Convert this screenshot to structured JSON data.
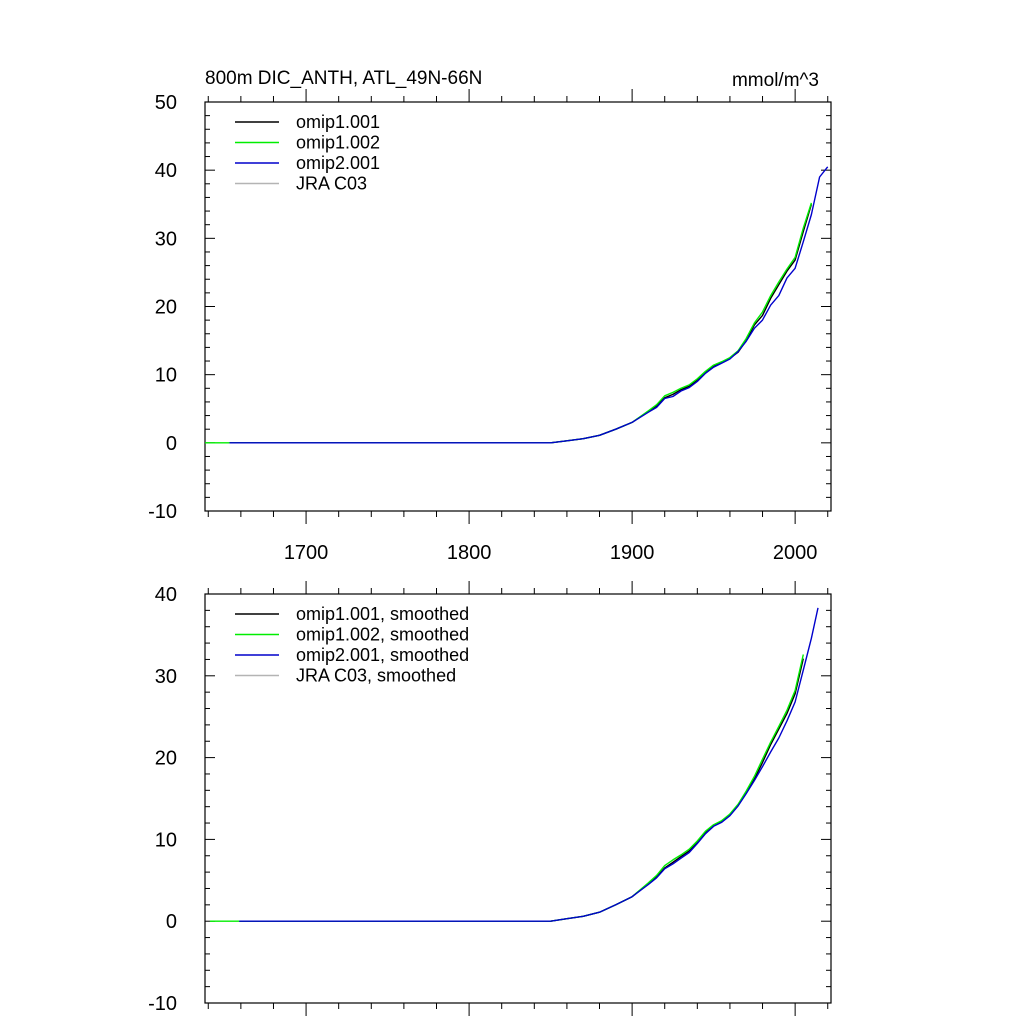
{
  "header": {
    "title_left": "800m DIC_ANTH, ATL_49N-66N",
    "title_right": "mmol/m^3"
  },
  "colors": {
    "omip1_001": "#000000",
    "omip1_002": "#00ee00",
    "omip2_001": "#0000cc",
    "jra_c03": "#b4b4b4"
  },
  "chart_data": [
    {
      "type": "line",
      "title": "800m DIC_ANTH, ATL_49N-66N",
      "ylabel": "mmol/m^3",
      "xlim": [
        1638,
        2022
      ],
      "ylim": [
        -10,
        50
      ],
      "x_ticks": [
        1700,
        1800,
        1900,
        2000
      ],
      "x_tick_labels": [
        "1700",
        "1800",
        "1900",
        "2000"
      ],
      "y_ticks": [
        -10,
        0,
        10,
        20,
        30,
        40,
        50
      ],
      "y_tick_labels": [
        "-10",
        "0",
        "10",
        "20",
        "30",
        "40",
        "50"
      ],
      "grid": false,
      "legend_position": "top-left",
      "series": [
        {
          "name": "omip1.001",
          "color": "#000000",
          "points": [
            [
              1653,
              0
            ],
            [
              1850,
              0
            ],
            [
              1860,
              0.3
            ],
            [
              1870,
              0.6
            ],
            [
              1880,
              1.1
            ],
            [
              1890,
              2
            ],
            [
              1900,
              3
            ],
            [
              1910,
              4.6
            ],
            [
              1915,
              5.4
            ],
            [
              1920,
              6.6
            ],
            [
              1925,
              7.1
            ],
            [
              1930,
              7.8
            ],
            [
              1935,
              8.3
            ],
            [
              1940,
              9.2
            ],
            [
              1945,
              10.3
            ],
            [
              1950,
              11.2
            ],
            [
              1955,
              11.8
            ],
            [
              1960,
              12.4
            ],
            [
              1965,
              13.3
            ],
            [
              1970,
              15
            ],
            [
              1975,
              17.3
            ],
            [
              1980,
              18.7
            ],
            [
              1985,
              21.2
            ],
            [
              1990,
              23.2
            ],
            [
              1995,
              25.2
            ],
            [
              2000,
              26.8
            ],
            [
              2005,
              31
            ],
            [
              2010,
              35
            ]
          ]
        },
        {
          "name": "omip1.002",
          "color": "#00ee00",
          "points": [
            [
              1638,
              0
            ],
            [
              1850,
              0
            ],
            [
              1860,
              0.3
            ],
            [
              1870,
              0.6
            ],
            [
              1880,
              1.1
            ],
            [
              1890,
              2
            ],
            [
              1900,
              3
            ],
            [
              1910,
              4.7
            ],
            [
              1915,
              5.6
            ],
            [
              1920,
              6.9
            ],
            [
              1925,
              7.4
            ],
            [
              1930,
              8
            ],
            [
              1935,
              8.5
            ],
            [
              1940,
              9.4
            ],
            [
              1945,
              10.5
            ],
            [
              1950,
              11.4
            ],
            [
              1955,
              11.9
            ],
            [
              1960,
              12.5
            ],
            [
              1965,
              13.5
            ],
            [
              1970,
              15.3
            ],
            [
              1975,
              17.6
            ],
            [
              1980,
              19.2
            ],
            [
              1985,
              21.6
            ],
            [
              1990,
              23.6
            ],
            [
              1995,
              25.5
            ],
            [
              2000,
              27.2
            ],
            [
              2005,
              31.5
            ],
            [
              2010,
              35.2
            ]
          ]
        },
        {
          "name": "omip2.001",
          "color": "#0000cc",
          "points": [
            [
              1653,
              0
            ],
            [
              1850,
              0
            ],
            [
              1860,
              0.3
            ],
            [
              1870,
              0.6
            ],
            [
              1880,
              1.1
            ],
            [
              1890,
              2
            ],
            [
              1900,
              3
            ],
            [
              1910,
              4.5
            ],
            [
              1915,
              5.2
            ],
            [
              1920,
              6.5
            ],
            [
              1925,
              6.8
            ],
            [
              1930,
              7.6
            ],
            [
              1935,
              8.1
            ],
            [
              1940,
              9
            ],
            [
              1945,
              10.2
            ],
            [
              1950,
              11.1
            ],
            [
              1955,
              11.7
            ],
            [
              1960,
              12.3
            ],
            [
              1965,
              13.4
            ],
            [
              1970,
              14.9
            ],
            [
              1975,
              16.8
            ],
            [
              1980,
              18
            ],
            [
              1985,
              20.2
            ],
            [
              1990,
              21.6
            ],
            [
              1995,
              24.2
            ],
            [
              2000,
              25.6
            ],
            [
              2005,
              29.5
            ],
            [
              2010,
              33.5
            ],
            [
              2015,
              39
            ],
            [
              2020,
              40.5
            ]
          ]
        },
        {
          "name": "JRA C03",
          "color": "#b4b4b4",
          "points": []
        }
      ]
    },
    {
      "type": "line",
      "xlim": [
        1638,
        2022
      ],
      "ylim": [
        -10,
        40
      ],
      "x_ticks": [
        1700,
        1800,
        1900,
        2000
      ],
      "y_ticks": [
        -10,
        0,
        10,
        20,
        30,
        40
      ],
      "y_tick_labels": [
        "-10",
        "0",
        "10",
        "20",
        "30",
        "40"
      ],
      "grid": false,
      "legend_position": "top-left",
      "series": [
        {
          "name": "omip1.001, smoothed",
          "color": "#000000",
          "points": [
            [
              1659,
              0
            ],
            [
              1850,
              0
            ],
            [
              1860,
              0.3
            ],
            [
              1870,
              0.6
            ],
            [
              1880,
              1.1
            ],
            [
              1890,
              2
            ],
            [
              1900,
              3
            ],
            [
              1910,
              4.6
            ],
            [
              1915,
              5.4
            ],
            [
              1920,
              6.5
            ],
            [
              1925,
              7.2
            ],
            [
              1930,
              7.9
            ],
            [
              1935,
              8.6
            ],
            [
              1940,
              9.6
            ],
            [
              1945,
              10.8
            ],
            [
              1950,
              11.7
            ],
            [
              1955,
              12.2
            ],
            [
              1960,
              13
            ],
            [
              1965,
              14.2
            ],
            [
              1970,
              15.7
            ],
            [
              1975,
              17.4
            ],
            [
              1980,
              19.4
            ],
            [
              1985,
              21.6
            ],
            [
              1990,
              23.5
            ],
            [
              1995,
              25.4
            ],
            [
              2000,
              27.8
            ],
            [
              2005,
              32.1
            ]
          ]
        },
        {
          "name": "omip1.002, smoothed",
          "color": "#00ee00",
          "points": [
            [
              1641,
              0
            ],
            [
              1850,
              0
            ],
            [
              1860,
              0.3
            ],
            [
              1870,
              0.6
            ],
            [
              1880,
              1.1
            ],
            [
              1890,
              2
            ],
            [
              1900,
              3
            ],
            [
              1910,
              4.7
            ],
            [
              1915,
              5.6
            ],
            [
              1920,
              6.8
            ],
            [
              1925,
              7.5
            ],
            [
              1930,
              8.1
            ],
            [
              1935,
              8.8
            ],
            [
              1940,
              9.8
            ],
            [
              1945,
              11
            ],
            [
              1950,
              11.8
            ],
            [
              1955,
              12.3
            ],
            [
              1960,
              13.1
            ],
            [
              1965,
              14.3
            ],
            [
              1970,
              15.9
            ],
            [
              1975,
              17.7
            ],
            [
              1980,
              19.8
            ],
            [
              1985,
              21.9
            ],
            [
              1990,
              23.8
            ],
            [
              1995,
              25.8
            ],
            [
              2000,
              28.2
            ],
            [
              2005,
              32.6
            ]
          ]
        },
        {
          "name": "omip2.001, smoothed",
          "color": "#0000cc",
          "points": [
            [
              1659,
              0
            ],
            [
              1850,
              0
            ],
            [
              1860,
              0.3
            ],
            [
              1870,
              0.6
            ],
            [
              1880,
              1.1
            ],
            [
              1890,
              2
            ],
            [
              1900,
              3
            ],
            [
              1910,
              4.5
            ],
            [
              1915,
              5.3
            ],
            [
              1920,
              6.4
            ],
            [
              1925,
              7
            ],
            [
              1930,
              7.7
            ],
            [
              1935,
              8.4
            ],
            [
              1940,
              9.5
            ],
            [
              1945,
              10.7
            ],
            [
              1950,
              11.6
            ],
            [
              1955,
              12.1
            ],
            [
              1960,
              12.9
            ],
            [
              1965,
              14.1
            ],
            [
              1970,
              15.6
            ],
            [
              1975,
              17.2
            ],
            [
              1980,
              18.9
            ],
            [
              1985,
              20.7
            ],
            [
              1990,
              22.4
            ],
            [
              1995,
              24.5
            ],
            [
              2000,
              26.8
            ],
            [
              2005,
              30.7
            ],
            [
              2010,
              34.6
            ],
            [
              2014,
              38.3
            ]
          ]
        },
        {
          "name": "JRA C03, smoothed",
          "color": "#b4b4b4",
          "points": []
        }
      ]
    }
  ]
}
